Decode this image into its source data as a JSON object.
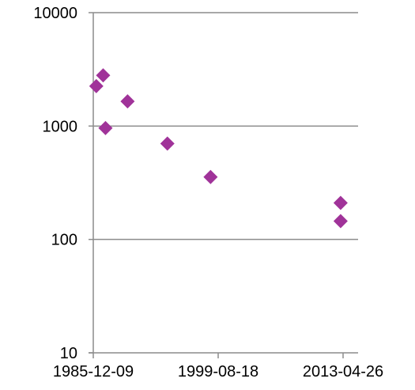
{
  "chart_data": {
    "type": "scatter",
    "title": "",
    "xlabel": "",
    "ylabel": "",
    "x_axis": {
      "type": "date",
      "range": [
        "1985-12-09",
        "2014-12-18"
      ],
      "tick_labels": [
        "1985-12-09",
        "1999-08-18",
        "2013-04-26"
      ]
    },
    "y_axis": {
      "type": "log",
      "range": [
        10,
        10000
      ],
      "tick_labels": [
        "10",
        "100",
        "1000",
        "10000"
      ]
    },
    "grid": "horizontal-major",
    "legend": "none",
    "marker": {
      "shape": "diamond",
      "color": "#a03399"
    },
    "points": [
      {
        "x": "1986-04-09",
        "y": 2250
      },
      {
        "x": "1987-01-08",
        "y": 2800
      },
      {
        "x": "1987-04-12",
        "y": 960
      },
      {
        "x": "1989-09-12",
        "y": 1650
      },
      {
        "x": "1994-01-23",
        "y": 700
      },
      {
        "x": "1998-10-17",
        "y": 355
      },
      {
        "x": "2013-01-18",
        "y": 210
      },
      {
        "x": "2013-01-18",
        "y": 145
      }
    ]
  }
}
